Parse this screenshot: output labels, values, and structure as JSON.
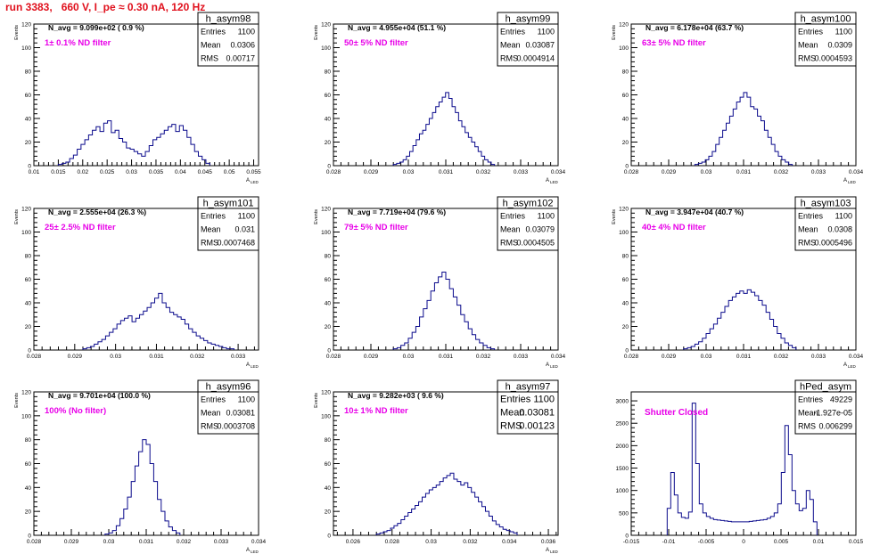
{
  "run_title": "run 3383,   660 V, I_pe ≈ 0.30 nA, 120 Hz",
  "stats_labels": {
    "entries": "Entries",
    "mean": "Mean",
    "rms": "RMS"
  },
  "chart_data": [
    {
      "type": "bar",
      "name": "h_asym98",
      "nlabel": "N_avg = 9.099e+02 ( 0.9 %)",
      "filter": "1± 0.1% ND filter",
      "stats": {
        "entries": "1100",
        "mean": "0.0306",
        "rms": "0.00717"
      },
      "ylabel": "Events",
      "xlabel": "A",
      "xlabel_sub": "LED",
      "xlim": [
        0.01,
        0.056
      ],
      "ylim": [
        0,
        120
      ],
      "yticks": [
        0,
        20,
        40,
        60,
        80,
        100,
        120
      ],
      "xticks": [
        0.01,
        0.015,
        0.02,
        0.025,
        0.03,
        0.035,
        0.04,
        0.045,
        0.05,
        0.055
      ],
      "xticklabels": [
        "0.01",
        "0.015",
        "0.02",
        "0.025",
        "0.03",
        "0.035",
        "0.04",
        "0.045",
        "0.05",
        "0.055"
      ],
      "hist": {
        "start": 0.015,
        "end": 0.046,
        "values": [
          1,
          2,
          3,
          6,
          9,
          14,
          18,
          22,
          26,
          30,
          33,
          29,
          36,
          38,
          28,
          30,
          23,
          20,
          15,
          14,
          12,
          10,
          8,
          12,
          17,
          22,
          24,
          27,
          30,
          33,
          35,
          29,
          34,
          30,
          24,
          18,
          12,
          8,
          5,
          2
        ]
      }
    },
    {
      "type": "bar",
      "name": "h_asym99",
      "nlabel": "N_avg = 4.955e+04 (51.1 %)",
      "filter": "50± 5% ND filter",
      "stats": {
        "entries": "1100",
        "mean": "0.03087",
        "rms": "0.0004914"
      },
      "ylabel": "Events",
      "xlabel": "A",
      "xlabel_sub": "LED",
      "xlim": [
        0.028,
        0.034
      ],
      "ylim": [
        0,
        120
      ],
      "yticks": [
        0,
        20,
        40,
        60,
        80,
        100,
        120
      ],
      "xticks": [
        0.028,
        0.029,
        0.03,
        0.031,
        0.032,
        0.033,
        0.034
      ],
      "xticklabels": [
        "0.028",
        "0.029",
        "0.03",
        "0.031",
        "0.032",
        "0.033",
        "0.034"
      ],
      "hist": {
        "start": 0.0296,
        "end": 0.0323,
        "values": [
          1,
          2,
          3,
          5,
          8,
          12,
          17,
          22,
          27,
          30,
          35,
          40,
          45,
          50,
          54,
          58,
          62,
          57,
          50,
          45,
          38,
          33,
          28,
          24,
          20,
          16,
          12,
          8,
          5,
          3,
          1
        ]
      }
    },
    {
      "type": "bar",
      "name": "h_asym100",
      "nlabel": "N_avg = 6.178e+04 (63.7 %)",
      "filter": "63± 5% ND filter",
      "stats": {
        "entries": "1100",
        "mean": "0.0309",
        "rms": "0.0004593"
      },
      "ylabel": "Events",
      "xlabel": "A",
      "xlabel_sub": "LED",
      "xlim": [
        0.028,
        0.034
      ],
      "ylim": [
        0,
        120
      ],
      "yticks": [
        0,
        20,
        40,
        60,
        80,
        100,
        120
      ],
      "xticks": [
        0.028,
        0.029,
        0.03,
        0.031,
        0.032,
        0.033,
        0.034
      ],
      "xticklabels": [
        "0.028",
        "0.029",
        "0.03",
        "0.031",
        "0.032",
        "0.033",
        "0.034"
      ],
      "hist": {
        "start": 0.0297,
        "end": 0.0323,
        "values": [
          1,
          2,
          3,
          5,
          8,
          12,
          18,
          24,
          30,
          36,
          42,
          48,
          54,
          58,
          62,
          58,
          50,
          48,
          42,
          38,
          30,
          24,
          18,
          12,
          8,
          5,
          3,
          1
        ]
      }
    },
    {
      "type": "bar",
      "name": "h_asym101",
      "nlabel": "N_avg = 2.555e+04 (26.3 %)",
      "filter": "25± 2.5% ND filter",
      "stats": {
        "entries": "1100",
        "mean": "0.031",
        "rms": "0.0007468"
      },
      "ylabel": "Events",
      "xlabel": "A",
      "xlabel_sub": "LED",
      "xlim": [
        0.028,
        0.0335
      ],
      "ylim": [
        0,
        120
      ],
      "yticks": [
        0,
        20,
        40,
        60,
        80,
        100,
        120
      ],
      "xticks": [
        0.028,
        0.029,
        0.03,
        0.031,
        0.032,
        0.033
      ],
      "xticklabels": [
        "0.028",
        "0.029",
        "0.03",
        "0.031",
        "0.032",
        "0.033"
      ],
      "hist": {
        "start": 0.0292,
        "end": 0.0329,
        "values": [
          1,
          2,
          3,
          5,
          7,
          9,
          12,
          15,
          18,
          22,
          25,
          27,
          29,
          24,
          27,
          30,
          33,
          36,
          40,
          44,
          48,
          40,
          36,
          32,
          30,
          28,
          26,
          22,
          18,
          15,
          12,
          10,
          8,
          6,
          5,
          4,
          3,
          2,
          1,
          1
        ]
      }
    },
    {
      "type": "bar",
      "name": "h_asym102",
      "nlabel": "N_avg = 7.719e+04 (79.6 %)",
      "filter": "79± 5% ND filter",
      "stats": {
        "entries": "1100",
        "mean": "0.03079",
        "rms": "0.0004505"
      },
      "ylabel": "Events",
      "xlabel": "A",
      "xlabel_sub": "LED",
      "xlim": [
        0.028,
        0.034
      ],
      "ylim": [
        0,
        120
      ],
      "yticks": [
        0,
        20,
        40,
        60,
        80,
        100,
        120
      ],
      "xticks": [
        0.028,
        0.029,
        0.03,
        0.031,
        0.032,
        0.033,
        0.034
      ],
      "xticklabels": [
        "0.028",
        "0.029",
        "0.03",
        "0.031",
        "0.032",
        "0.033",
        "0.034"
      ],
      "hist": {
        "start": 0.0296,
        "end": 0.0323,
        "values": [
          1,
          2,
          4,
          6,
          10,
          15,
          20,
          28,
          35,
          42,
          50,
          57,
          62,
          66,
          60,
          52,
          45,
          38,
          30,
          24,
          18,
          13,
          9,
          6,
          4,
          2,
          1
        ]
      }
    },
    {
      "type": "bar",
      "name": "h_asym103",
      "nlabel": "N_avg = 3.947e+04 (40.7 %)",
      "filter": "40± 4% ND filter",
      "stats": {
        "entries": "1100",
        "mean": "0.0308",
        "rms": "0.0005496"
      },
      "ylabel": "Events",
      "xlabel": "A",
      "xlabel_sub": "LED",
      "xlim": [
        0.028,
        0.034
      ],
      "ylim": [
        0,
        120
      ],
      "yticks": [
        0,
        20,
        40,
        60,
        80,
        100,
        120
      ],
      "xticks": [
        0.028,
        0.029,
        0.03,
        0.031,
        0.032,
        0.033,
        0.034
      ],
      "xticklabels": [
        "0.028",
        "0.029",
        "0.03",
        "0.031",
        "0.032",
        "0.033",
        "0.034"
      ],
      "hist": {
        "start": 0.0294,
        "end": 0.0324,
        "values": [
          1,
          2,
          3,
          5,
          7,
          10,
          14,
          18,
          22,
          27,
          32,
          37,
          42,
          45,
          48,
          50,
          48,
          51,
          49,
          46,
          42,
          38,
          32,
          26,
          20,
          14,
          10,
          6,
          4,
          2
        ]
      }
    },
    {
      "type": "bar",
      "name": "h_asym96",
      "nlabel": "N_avg = 9.701e+04 (100.0 %)",
      "filter": "100% (No filter)",
      "stats": {
        "entries": "1100",
        "mean": "0.03081",
        "rms": "0.0003708"
      },
      "ylabel": "Events",
      "xlabel": "A",
      "xlabel_sub": "LED",
      "xlim": [
        0.028,
        0.034
      ],
      "ylim": [
        0,
        120
      ],
      "yticks": [
        0,
        20,
        40,
        60,
        80,
        100,
        120
      ],
      "xticks": [
        0.028,
        0.029,
        0.03,
        0.031,
        0.032,
        0.033,
        0.034
      ],
      "xticklabels": [
        "0.028",
        "0.029",
        "0.03",
        "0.031",
        "0.032",
        "0.033",
        "0.034"
      ],
      "hist": {
        "start": 0.0299,
        "end": 0.0319,
        "values": [
          1,
          2,
          4,
          8,
          14,
          22,
          32,
          45,
          58,
          70,
          80,
          76,
          60,
          45,
          30,
          20,
          12,
          7,
          4,
          2
        ]
      }
    },
    {
      "type": "bar",
      "name": "h_asym97",
      "nlabel": "N_avg = 9.282e+03 ( 9.6 %)",
      "filter": "10± 1% ND filter",
      "stats": {
        "entries": "1100",
        "mean": "0.03081",
        "rms": "0.00123"
      },
      "ylabel": "Events",
      "xlabel": "A",
      "xlabel_sub": "LED",
      "xlim": [
        0.025,
        0.0365
      ],
      "ylim": [
        0,
        120
      ],
      "yticks": [
        0,
        20,
        40,
        60,
        80,
        100,
        120
      ],
      "xticks": [
        0.026,
        0.028,
        0.03,
        0.032,
        0.034,
        0.036
      ],
      "xticklabels": [
        "0.026",
        "0.028",
        "0.03",
        "0.032",
        "0.034",
        "0.036"
      ],
      "hist": {
        "start": 0.0272,
        "end": 0.0344,
        "values": [
          1,
          2,
          3,
          4,
          6,
          8,
          10,
          13,
          16,
          19,
          22,
          25,
          28,
          32,
          35,
          38,
          40,
          42,
          45,
          48,
          50,
          52,
          47,
          45,
          42,
          44,
          40,
          36,
          32,
          28,
          24,
          20,
          16,
          12,
          9,
          7,
          5,
          4,
          3,
          2
        ]
      }
    },
    {
      "type": "bar",
      "name": "hPed_asym",
      "filter": "Shutter Closed",
      "stats": {
        "entries": "49229",
        "mean": "-1.927e-05",
        "rms": "0.006299"
      },
      "xlim": [
        -0.015,
        0.015
      ],
      "ylim": [
        0,
        3200
      ],
      "yticks": [
        0,
        500,
        1000,
        1500,
        2000,
        2500,
        3000
      ],
      "xticks": [
        -0.015,
        -0.01,
        -0.005,
        0,
        0.005,
        0.01,
        0.015
      ],
      "xticklabels": [
        "-0.015",
        "-0.01",
        "-0.005",
        "0",
        "0.005",
        "0.01",
        "0.015"
      ],
      "hist": {
        "start": -0.0102,
        "end": 0.0098,
        "values": [
          600,
          1400,
          900,
          500,
          400,
          380,
          520,
          2950,
          1600,
          700,
          500,
          420,
          380,
          350,
          340,
          330,
          320,
          310,
          300,
          300,
          300,
          300,
          300,
          310,
          320,
          330,
          340,
          350,
          380,
          420,
          500,
          700,
          1400,
          2450,
          1800,
          1000,
          700,
          550,
          600,
          1000,
          800,
          300
        ]
      }
    }
  ]
}
